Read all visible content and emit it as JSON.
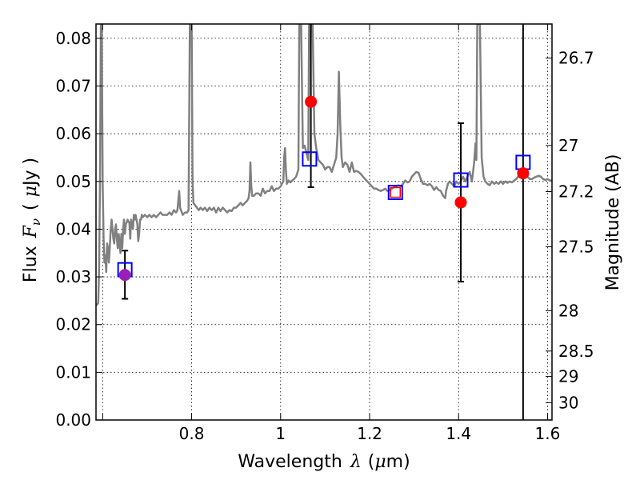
{
  "chart_data": {
    "type": "scatter",
    "xlabel_parts": [
      "Wavelength",
      "λ",
      "(",
      "μ",
      "m)"
    ],
    "ylabel_parts": [
      "Flux",
      "F",
      "ν",
      "(",
      "μ",
      "Jy )"
    ],
    "y2label": "Magnitude (AB)",
    "xlim": [
      0.585,
      1.61
    ],
    "ylim": [
      0.0,
      0.083
    ],
    "grid": true,
    "x_ticks": [
      {
        "value": 0.6,
        "label": ""
      },
      {
        "value": 0.8,
        "label": "0.8"
      },
      {
        "value": 1.0,
        "label": "1"
      },
      {
        "value": 1.2,
        "label": "1.2"
      },
      {
        "value": 1.4,
        "label": "1.4"
      },
      {
        "value": 1.6,
        "label": "1.6"
      }
    ],
    "y_ticks": [
      {
        "value": 0.0,
        "label": "0.00"
      },
      {
        "value": 0.01,
        "label": "0.01"
      },
      {
        "value": 0.02,
        "label": "0.02"
      },
      {
        "value": 0.03,
        "label": "0.03"
      },
      {
        "value": 0.04,
        "label": "0.04"
      },
      {
        "value": 0.05,
        "label": "0.05"
      },
      {
        "value": 0.06,
        "label": "0.06"
      },
      {
        "value": 0.07,
        "label": "0.07"
      },
      {
        "value": 0.08,
        "label": "0.08"
      }
    ],
    "y2_ticks": [
      {
        "mag": 26.7,
        "label": "26.7"
      },
      {
        "mag": 27.0,
        "label": "27"
      },
      {
        "mag": 27.2,
        "label": "27.2"
      },
      {
        "mag": 27.5,
        "label": "27.5"
      },
      {
        "mag": 28.0,
        "label": "28"
      },
      {
        "mag": 28.5,
        "label": "28.5"
      },
      {
        "mag": 29.0,
        "label": "29"
      },
      {
        "mag": 30.0,
        "label": "30"
      }
    ],
    "mag_zero_point": 23.9,
    "spectrum": {
      "color": "#808080",
      "points": [
        [
          0.585,
          0.024
        ],
        [
          0.59,
          0.0245
        ],
        [
          0.592,
          0.032
        ],
        [
          0.594,
          0.05
        ],
        [
          0.596,
          0.083
        ],
        [
          0.598,
          0.083
        ],
        [
          0.6,
          0.05
        ],
        [
          0.602,
          0.038
        ],
        [
          0.604,
          0.033
        ],
        [
          0.606,
          0.0345
        ],
        [
          0.608,
          0.031
        ],
        [
          0.61,
          0.037
        ],
        [
          0.612,
          0.036
        ],
        [
          0.614,
          0.033
        ],
        [
          0.616,
          0.036
        ],
        [
          0.618,
          0.04
        ],
        [
          0.62,
          0.042
        ],
        [
          0.622,
          0.04
        ],
        [
          0.624,
          0.038
        ],
        [
          0.626,
          0.037
        ],
        [
          0.628,
          0.04
        ],
        [
          0.63,
          0.041
        ],
        [
          0.632,
          0.038
        ],
        [
          0.634,
          0.036
        ],
        [
          0.636,
          0.039
        ],
        [
          0.638,
          0.037
        ],
        [
          0.64,
          0.035
        ],
        [
          0.642,
          0.039
        ],
        [
          0.644,
          0.036
        ],
        [
          0.646,
          0.04
        ],
        [
          0.648,
          0.042
        ],
        [
          0.65,
          0.039
        ],
        [
          0.652,
          0.041
        ],
        [
          0.654,
          0.0415
        ],
        [
          0.656,
          0.042
        ],
        [
          0.658,
          0.0415
        ],
        [
          0.66,
          0.0415
        ],
        [
          0.662,
          0.038
        ],
        [
          0.664,
          0.042
        ],
        [
          0.666,
          0.041
        ],
        [
          0.668,
          0.04
        ],
        [
          0.67,
          0.043
        ],
        [
          0.672,
          0.042
        ],
        [
          0.674,
          0.043
        ],
        [
          0.676,
          0.042
        ],
        [
          0.678,
          0.041
        ],
        [
          0.68,
          0.0375
        ],
        [
          0.682,
          0.039
        ],
        [
          0.684,
          0.042
        ],
        [
          0.686,
          0.042
        ],
        [
          0.688,
          0.043
        ],
        [
          0.69,
          0.0425
        ],
        [
          0.695,
          0.043
        ],
        [
          0.7,
          0.0425
        ],
        [
          0.705,
          0.043
        ],
        [
          0.71,
          0.0425
        ],
        [
          0.715,
          0.043
        ],
        [
          0.72,
          0.0425
        ],
        [
          0.725,
          0.043
        ],
        [
          0.73,
          0.0435
        ],
        [
          0.735,
          0.043
        ],
        [
          0.74,
          0.043
        ],
        [
          0.745,
          0.043
        ],
        [
          0.75,
          0.0435
        ],
        [
          0.755,
          0.043
        ],
        [
          0.76,
          0.044
        ],
        [
          0.765,
          0.0435
        ],
        [
          0.768,
          0.044
        ],
        [
          0.77,
          0.046
        ],
        [
          0.772,
          0.048
        ],
        [
          0.774,
          0.0445
        ],
        [
          0.776,
          0.044
        ],
        [
          0.78,
          0.043
        ],
        [
          0.785,
          0.0435
        ],
        [
          0.79,
          0.0435
        ],
        [
          0.793,
          0.044
        ],
        [
          0.796,
          0.083
        ],
        [
          0.8,
          0.083
        ],
        [
          0.802,
          0.05
        ],
        [
          0.804,
          0.0455
        ],
        [
          0.808,
          0.045
        ],
        [
          0.812,
          0.0445
        ],
        [
          0.816,
          0.044
        ],
        [
          0.82,
          0.0445
        ],
        [
          0.825,
          0.044
        ],
        [
          0.83,
          0.0445
        ],
        [
          0.835,
          0.0438
        ],
        [
          0.84,
          0.0445
        ],
        [
          0.845,
          0.044
        ],
        [
          0.85,
          0.0445
        ],
        [
          0.855,
          0.0435
        ],
        [
          0.86,
          0.0445
        ],
        [
          0.865,
          0.0438
        ],
        [
          0.87,
          0.0445
        ],
        [
          0.875,
          0.044
        ],
        [
          0.88,
          0.0435
        ],
        [
          0.885,
          0.044
        ],
        [
          0.89,
          0.0438
        ],
        [
          0.895,
          0.0445
        ],
        [
          0.9,
          0.0445
        ],
        [
          0.905,
          0.045
        ],
        [
          0.91,
          0.0455
        ],
        [
          0.915,
          0.045
        ],
        [
          0.92,
          0.0455
        ],
        [
          0.925,
          0.046
        ],
        [
          0.928,
          0.0465
        ],
        [
          0.93,
          0.048
        ],
        [
          0.932,
          0.054
        ],
        [
          0.934,
          0.049
        ],
        [
          0.936,
          0.047
        ],
        [
          0.94,
          0.047
        ],
        [
          0.945,
          0.0475
        ],
        [
          0.95,
          0.0475
        ],
        [
          0.955,
          0.047
        ],
        [
          0.96,
          0.0485
        ],
        [
          0.965,
          0.0475
        ],
        [
          0.97,
          0.048
        ],
        [
          0.975,
          0.048
        ],
        [
          0.98,
          0.049
        ],
        [
          0.985,
          0.048
        ],
        [
          0.99,
          0.0485
        ],
        [
          0.995,
          0.0485
        ],
        [
          1.0,
          0.049
        ],
        [
          1.003,
          0.0495
        ],
        [
          1.006,
          0.05
        ],
        [
          1.008,
          0.055
        ],
        [
          1.01,
          0.057
        ],
        [
          1.012,
          0.052
        ],
        [
          1.014,
          0.0495
        ],
        [
          1.018,
          0.0502
        ],
        [
          1.022,
          0.0498
        ],
        [
          1.026,
          0.0502
        ],
        [
          1.03,
          0.0505
        ],
        [
          1.035,
          0.051
        ],
        [
          1.04,
          0.0525
        ],
        [
          1.042,
          0.083
        ],
        [
          1.046,
          0.083
        ],
        [
          1.05,
          0.057
        ],
        [
          1.054,
          0.0575
        ],
        [
          1.058,
          0.056
        ],
        [
          1.062,
          0.0545
        ],
        [
          1.064,
          0.083
        ],
        [
          1.068,
          0.083
        ],
        [
          1.072,
          0.083
        ],
        [
          1.076,
          0.06
        ],
        [
          1.08,
          0.057
        ],
        [
          1.085,
          0.0545
        ],
        [
          1.09,
          0.054
        ],
        [
          1.095,
          0.0535
        ],
        [
          1.1,
          0.0525
        ],
        [
          1.105,
          0.053
        ],
        [
          1.11,
          0.053
        ],
        [
          1.115,
          0.052
        ],
        [
          1.12,
          0.0535
        ],
        [
          1.125,
          0.055
        ],
        [
          1.128,
          0.06
        ],
        [
          1.131,
          0.073
        ],
        [
          1.134,
          0.062
        ],
        [
          1.137,
          0.055
        ],
        [
          1.14,
          0.053
        ],
        [
          1.145,
          0.054
        ],
        [
          1.15,
          0.0535
        ],
        [
          1.155,
          0.052
        ],
        [
          1.16,
          0.054
        ],
        [
          1.165,
          0.052
        ],
        [
          1.17,
          0.0522
        ],
        [
          1.175,
          0.052
        ],
        [
          1.18,
          0.0516
        ],
        [
          1.185,
          0.051
        ],
        [
          1.19,
          0.0505
        ],
        [
          1.195,
          0.05
        ],
        [
          1.2,
          0.0495
        ],
        [
          1.205,
          0.049
        ],
        [
          1.21,
          0.0485
        ],
        [
          1.215,
          0.0485
        ],
        [
          1.22,
          0.0482
        ],
        [
          1.225,
          0.048
        ],
        [
          1.23,
          0.0482
        ],
        [
          1.235,
          0.0485
        ],
        [
          1.24,
          0.048
        ],
        [
          1.245,
          0.0482
        ],
        [
          1.25,
          0.0485
        ],
        [
          1.255,
          0.0488
        ],
        [
          1.26,
          0.049
        ],
        [
          1.265,
          0.0492
        ],
        [
          1.27,
          0.049
        ],
        [
          1.275,
          0.0495
        ],
        [
          1.28,
          0.0502
        ],
        [
          1.285,
          0.0498
        ],
        [
          1.29,
          0.05
        ],
        [
          1.295,
          0.051
        ],
        [
          1.3,
          0.0515
        ],
        [
          1.305,
          0.052
        ],
        [
          1.31,
          0.0518
        ],
        [
          1.315,
          0.0505
        ],
        [
          1.32,
          0.0495
        ],
        [
          1.325,
          0.0495
        ],
        [
          1.33,
          0.0492
        ],
        [
          1.335,
          0.0495
        ],
        [
          1.34,
          0.049
        ],
        [
          1.345,
          0.0482
        ],
        [
          1.35,
          0.0488
        ],
        [
          1.355,
          0.0482
        ],
        [
          1.36,
          0.048
        ],
        [
          1.365,
          0.047
        ],
        [
          1.37,
          0.0465
        ],
        [
          1.372,
          0.048
        ],
        [
          1.376,
          0.0495
        ],
        [
          1.38,
          0.05
        ],
        [
          1.385,
          0.0495
        ],
        [
          1.39,
          0.049
        ],
        [
          1.395,
          0.05
        ],
        [
          1.4,
          0.0495
        ],
        [
          1.405,
          0.05
        ],
        [
          1.41,
          0.051
        ],
        [
          1.415,
          0.05
        ],
        [
          1.42,
          0.051
        ],
        [
          1.425,
          0.052
        ],
        [
          1.43,
          0.05
        ],
        [
          1.435,
          0.054
        ],
        [
          1.438,
          0.058
        ],
        [
          1.44,
          0.0545
        ],
        [
          1.442,
          0.083
        ],
        [
          1.448,
          0.083
        ],
        [
          1.452,
          0.055
        ],
        [
          1.456,
          0.051
        ],
        [
          1.46,
          0.05
        ],
        [
          1.465,
          0.0495
        ],
        [
          1.47,
          0.0492
        ],
        [
          1.475,
          0.05
        ],
        [
          1.48,
          0.0495
        ],
        [
          1.485,
          0.0498
        ],
        [
          1.49,
          0.0495
        ],
        [
          1.495,
          0.05
        ],
        [
          1.5,
          0.0495
        ],
        [
          1.505,
          0.05
        ],
        [
          1.51,
          0.0497
        ],
        [
          1.515,
          0.05
        ],
        [
          1.52,
          0.0498
        ],
        [
          1.525,
          0.0502
        ],
        [
          1.53,
          0.0505
        ],
        [
          1.535,
          0.0512
        ],
        [
          1.54,
          0.0515
        ],
        [
          1.545,
          0.052
        ],
        [
          1.55,
          0.0515
        ],
        [
          1.555,
          0.051
        ],
        [
          1.56,
          0.0505
        ],
        [
          1.565,
          0.0505
        ],
        [
          1.57,
          0.0508
        ],
        [
          1.575,
          0.051
        ],
        [
          1.58,
          0.0512
        ],
        [
          1.585,
          0.051
        ],
        [
          1.59,
          0.0505
        ],
        [
          1.595,
          0.0503
        ],
        [
          1.6,
          0.0505
        ],
        [
          1.605,
          0.0502
        ],
        [
          1.61,
          0.0502
        ]
      ]
    },
    "model_points": [
      {
        "x": 0.65,
        "y": 0.0315,
        "color": "#0000ff"
      },
      {
        "x": 1.065,
        "y": 0.0547,
        "color": "#0000ff"
      },
      {
        "x": 1.258,
        "y": 0.0477,
        "color": "#0000ff"
      },
      {
        "x": 1.405,
        "y": 0.0503,
        "color": "#0000ff"
      },
      {
        "x": 1.545,
        "y": 0.054,
        "color": "#0000ff"
      }
    ],
    "observed_points": [
      {
        "x": 0.65,
        "y": 0.0304,
        "yerr_low": 0.0254,
        "yerr_high": 0.0355,
        "color": "#9c1fb5"
      },
      {
        "x": 1.068,
        "y": 0.0667,
        "yerr_low": 0.0488,
        "yerr_high": 0.083,
        "color": "#ff0000"
      },
      {
        "x": 1.258,
        "y": 0.0477,
        "color": "#ff0000",
        "marker": "square-outline"
      },
      {
        "x": 1.405,
        "y": 0.0456,
        "yerr_low": 0.029,
        "yerr_high": 0.0622,
        "color": "#ff0000"
      },
      {
        "x": 1.545,
        "y": 0.0517,
        "yerr_low": 0.0,
        "yerr_high": 0.083,
        "color": "#ff0000"
      }
    ]
  }
}
